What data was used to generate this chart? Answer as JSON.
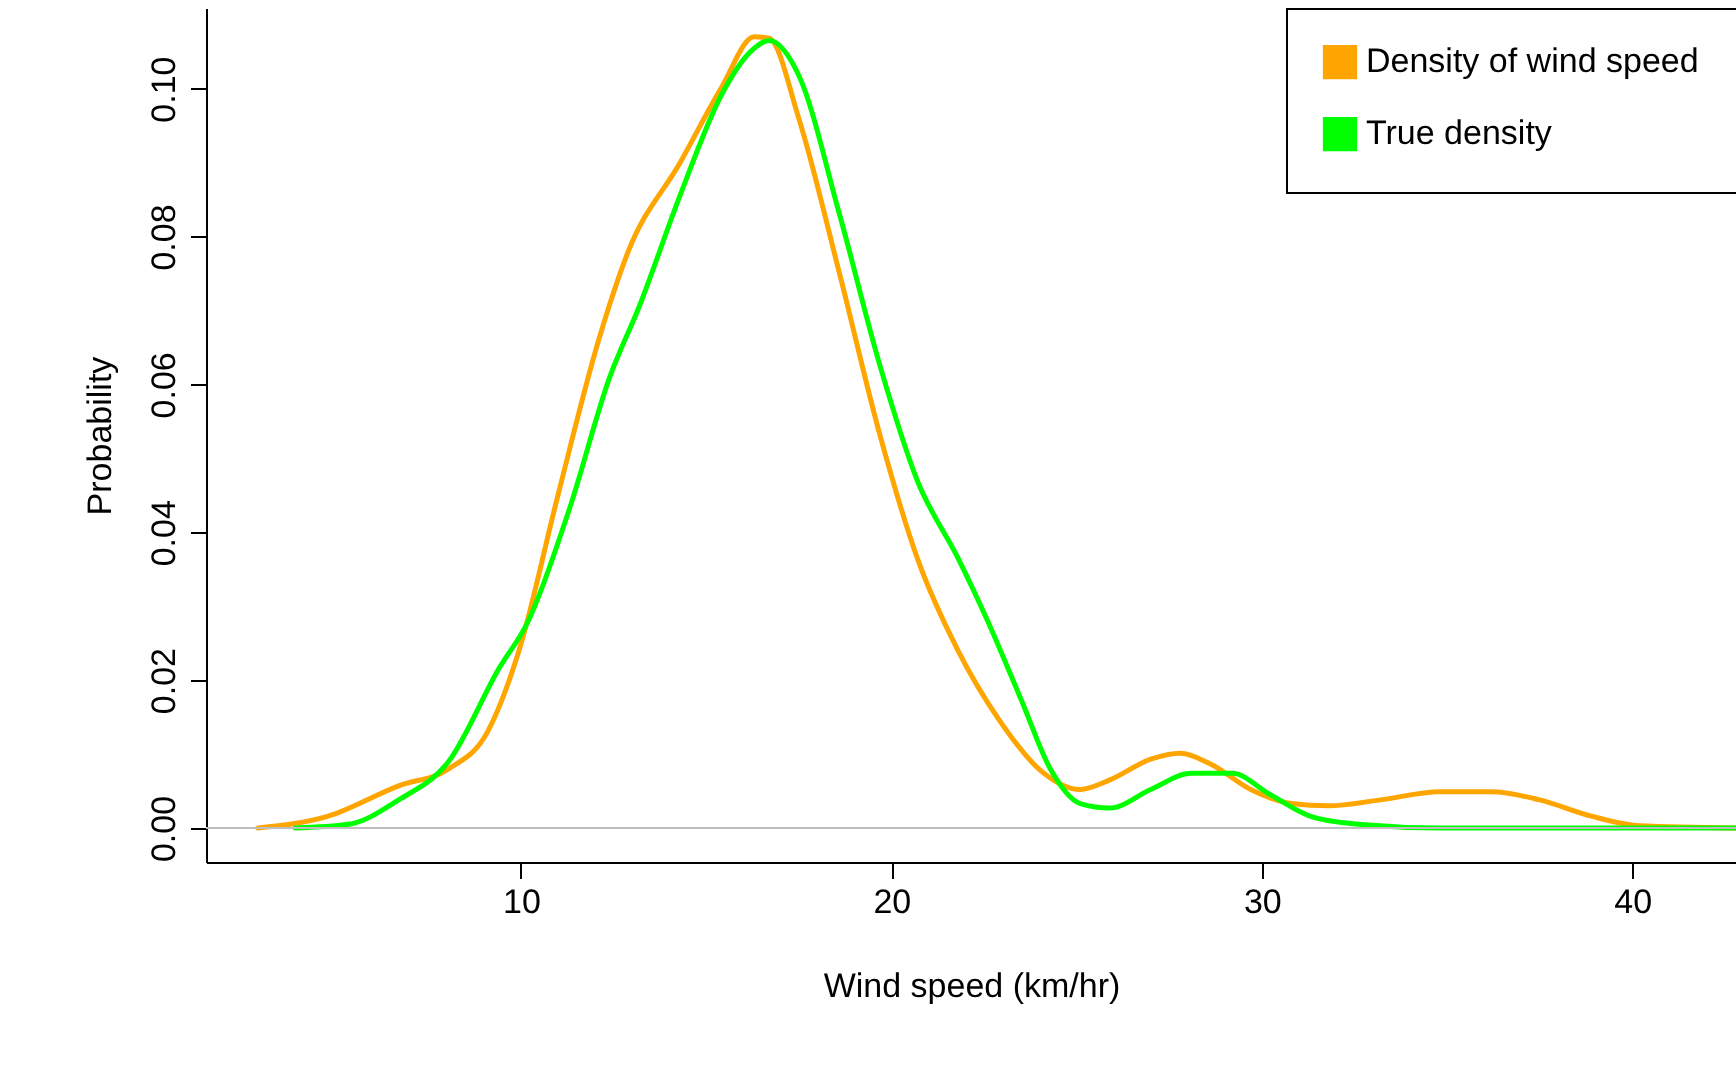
{
  "chart_data": {
    "type": "line",
    "xlabel": "Wind speed (km/hr)",
    "ylabel": "Probability",
    "xlim": [
      1.5,
      42.8
    ],
    "ylim": [
      -0.0046,
      0.1109
    ],
    "xticks": [
      10,
      20,
      30,
      40
    ],
    "yticks": [
      {
        "value": 0,
        "label": "0.00"
      },
      {
        "value": 0.02,
        "label": "0.02"
      },
      {
        "value": 0.04,
        "label": "0.04"
      },
      {
        "value": 0.06,
        "label": "0.06"
      },
      {
        "value": 0.08,
        "label": "0.08"
      },
      {
        "value": 0.1,
        "label": "0.10"
      }
    ],
    "grid": false,
    "legend": "top right",
    "ref_lines": [
      {
        "axis": "y",
        "value": 0,
        "color": "#bebebe"
      }
    ],
    "series": [
      {
        "name": "Density of wind speed",
        "color": "#ffa500",
        "x": [
          2.9,
          4.8,
          6.7,
          8.05,
          9.1,
          9.95,
          11.0,
          12.1,
          12.9,
          14.3,
          15.4,
          16.3,
          16.7,
          17.5,
          18.6,
          19.7,
          20.7,
          21.8,
          22.9,
          24.0,
          25.1,
          25.9,
          27.0,
          27.8,
          28.6,
          29.7,
          30.8,
          31.8,
          33.2,
          34.8,
          36.2,
          37.5,
          38.9,
          40.2,
          42.8
        ],
        "values": [
          0,
          0.0016,
          0.0057,
          0.008,
          0.013,
          0.024,
          0.045,
          0.066,
          0.078,
          0.09,
          0.1,
          0.107,
          0.1068,
          0.096,
          0.075,
          0.053,
          0.0365,
          0.024,
          0.0147,
          0.0079,
          0.0052,
          0.0065,
          0.0093,
          0.0101,
          0.0087,
          0.0052,
          0.0033,
          0.003,
          0.0038,
          0.0049,
          0.0049,
          0.0038,
          0.0016,
          0.0003,
          0
        ]
      },
      {
        "name": "True density",
        "color": "#00ff00",
        "x": [
          3.9,
          5.35,
          6.7,
          8.05,
          9.4,
          10.2,
          11.3,
          12.4,
          13.2,
          14.3,
          15.4,
          16.2,
          16.7,
          17.5,
          18.6,
          19.7,
          20.7,
          21.8,
          22.6,
          23.5,
          24.3,
          25.1,
          25.9,
          27.0,
          28.1,
          29.2,
          30.2,
          31.3,
          32.6,
          34.8,
          42.8
        ],
        "values": [
          0,
          0.0005,
          0.0038,
          0.009,
          0.0215,
          0.028,
          0.043,
          0.061,
          0.0706,
          0.0856,
          0.099,
          0.105,
          0.1065,
          0.1018,
          0.083,
          0.0624,
          0.047,
          0.0365,
          0.028,
          0.0174,
          0.0079,
          0.0033,
          0.0027,
          0.0052,
          0.0074,
          0.0074,
          0.0046,
          0.0016,
          0.0005,
          0,
          0
        ]
      }
    ]
  }
}
